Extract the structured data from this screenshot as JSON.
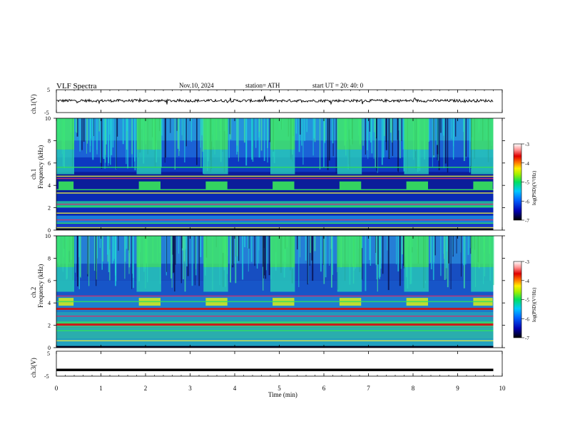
{
  "header": {
    "title": "VLF  Spectra",
    "date": "Nov.10, 2024",
    "station": "station= ATH",
    "start_ut": "start  UT  =    20: 40: 0"
  },
  "colors": {
    "background": "#ffffff",
    "axes": "#000000",
    "spec_low": "#0a1a9a",
    "spec_mid": "#2ad6c0",
    "spec_high": "#d40000"
  },
  "chart_data": [
    {
      "id": "ch1-waveform",
      "type": "line",
      "ylabel": "ch.1(V)",
      "yticks": [
        "5",
        "-5"
      ],
      "ylim": [
        -5,
        5
      ],
      "xlim": [
        0,
        10
      ],
      "data_xrange_min": [
        0,
        9.8
      ],
      "baseline_v": 0.2
    },
    {
      "id": "ch1-spectrogram",
      "type": "heatmap",
      "ylabel_top": "ch.1",
      "ylabel": "Frequency  (kHz)",
      "yticks": [
        "0",
        "2",
        "4",
        "6",
        "8",
        "10"
      ],
      "ylim": [
        0,
        10
      ],
      "xlim": [
        0,
        10
      ],
      "colorbar": {
        "label": "log(PSD)(V²/Hz)",
        "ticks": [
          "-3",
          "-4",
          "-5",
          "-6",
          "-7"
        ],
        "range": [
          -7,
          -3
        ]
      },
      "high_activity_windows_min": [
        [
          0.0,
          0.4
        ],
        [
          1.8,
          2.35
        ],
        [
          3.3,
          3.85
        ],
        [
          4.8,
          5.35
        ],
        [
          6.3,
          6.85
        ],
        [
          7.8,
          8.35
        ],
        [
          9.3,
          9.8
        ]
      ],
      "line_freqs_khz": [
        0.2,
        0.6,
        0.9,
        1.5,
        2.1,
        2.3,
        3.3,
        3.6,
        4.6,
        4.8,
        5.6
      ]
    },
    {
      "id": "ch2-spectrogram",
      "type": "heatmap",
      "ylabel_top": "ch.2",
      "ylabel": "Frequency  (kHz)",
      "yticks": [
        "0",
        "2",
        "4",
        "6",
        "8",
        "10"
      ],
      "ylim": [
        0,
        10
      ],
      "xlim": [
        0,
        10
      ],
      "colorbar": {
        "label": "log(PSD)(V²/Hz)",
        "ticks": [
          "-3",
          "-4",
          "-5",
          "-6",
          "-7"
        ],
        "range": [
          -7,
          -3
        ]
      },
      "high_activity_windows_min": [
        [
          0.0,
          0.4
        ],
        [
          1.8,
          2.35
        ],
        [
          3.3,
          3.85
        ],
        [
          4.8,
          5.35
        ],
        [
          6.3,
          6.85
        ],
        [
          7.8,
          8.35
        ],
        [
          9.3,
          9.8
        ]
      ],
      "line_freqs_khz": [
        0.6,
        1.5,
        2.0,
        2.1,
        2.2,
        2.8,
        3.5,
        4.1,
        4.6
      ]
    },
    {
      "id": "ch3-waveform",
      "type": "line",
      "ylabel": "ch.3(V)",
      "yticks": [
        "5",
        "-5"
      ],
      "ylim": [
        -5,
        5
      ],
      "xlim": [
        0,
        10
      ],
      "data_xrange_min": [
        0,
        9.8
      ],
      "baseline_v": -2.5
    }
  ],
  "xaxis": {
    "label": "Time  (min)",
    "ticks": [
      "0",
      "1",
      "2",
      "3",
      "4",
      "5",
      "6",
      "7",
      "8",
      "9",
      "10"
    ]
  }
}
